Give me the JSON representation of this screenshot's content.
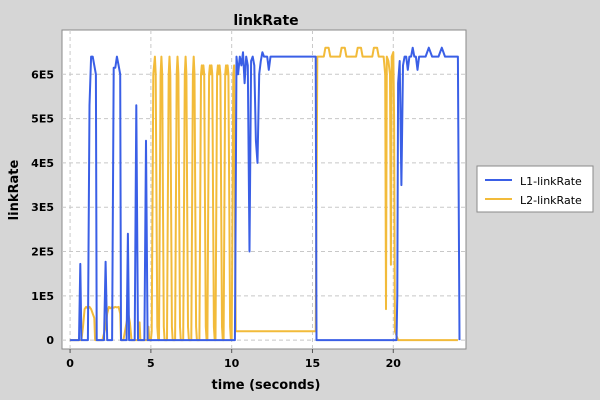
{
  "chart_data": {
    "type": "line",
    "title": "linkRate",
    "xlabel": "time (seconds)",
    "ylabel": "linkRate",
    "xlim": [
      -0.5,
      24.5
    ],
    "ylim": [
      -20000,
      700000
    ],
    "x_ticks": [
      0,
      5,
      10,
      15,
      20
    ],
    "x_tick_labels": [
      "0",
      "5",
      "10",
      "15",
      "20"
    ],
    "y_ticks": [
      0,
      100000,
      200000,
      300000,
      400000,
      500000,
      600000
    ],
    "y_tick_labels": [
      "0",
      "1E5",
      "2E5",
      "3E5",
      "4E5",
      "5E5",
      "6E5"
    ],
    "grid": true,
    "legend_position": "right",
    "series": [
      {
        "name": "L1-linkRate",
        "color": "#3a5fe6",
        "points": [
          [
            0,
            0
          ],
          [
            0.55,
            0
          ],
          [
            0.63,
            172000
          ],
          [
            0.7,
            0
          ],
          [
            1.1,
            0
          ],
          [
            1.2,
            530000
          ],
          [
            1.3,
            640000
          ],
          [
            1.4,
            640000
          ],
          [
            1.5,
            620000
          ],
          [
            1.6,
            600000
          ],
          [
            1.65,
            0
          ],
          [
            2.1,
            0
          ],
          [
            2.2,
            177000
          ],
          [
            2.3,
            0
          ],
          [
            2.6,
            0
          ],
          [
            2.7,
            615000
          ],
          [
            2.8,
            615000
          ],
          [
            2.9,
            640000
          ],
          [
            3.0,
            620000
          ],
          [
            3.1,
            600000
          ],
          [
            3.15,
            0
          ],
          [
            3.5,
            0
          ],
          [
            3.58,
            240000
          ],
          [
            3.65,
            0
          ],
          [
            4.0,
            0
          ],
          [
            4.1,
            530000
          ],
          [
            4.2,
            0
          ],
          [
            4.6,
            0
          ],
          [
            4.7,
            450000
          ],
          [
            4.8,
            0
          ],
          [
            5.4,
            0
          ],
          [
            5.45,
            0
          ],
          [
            10.2,
            0
          ],
          [
            10.25,
            300000
          ],
          [
            10.3,
            640000
          ],
          [
            10.4,
            600000
          ],
          [
            10.5,
            640000
          ],
          [
            10.6,
            620000
          ],
          [
            10.7,
            650000
          ],
          [
            10.8,
            580000
          ],
          [
            10.9,
            640000
          ],
          [
            11.0,
            620000
          ],
          [
            11.1,
            200000
          ],
          [
            11.2,
            630000
          ],
          [
            11.3,
            640000
          ],
          [
            11.4,
            620000
          ],
          [
            11.5,
            450000
          ],
          [
            11.6,
            400000
          ],
          [
            11.7,
            600000
          ],
          [
            11.8,
            630000
          ],
          [
            11.9,
            650000
          ],
          [
            12.0,
            640000
          ],
          [
            12.2,
            640000
          ],
          [
            12.3,
            610000
          ],
          [
            12.4,
            640000
          ],
          [
            12.6,
            640000
          ],
          [
            12.8,
            640000
          ],
          [
            13.0,
            640000
          ],
          [
            13.2,
            640000
          ],
          [
            13.4,
            640000
          ],
          [
            13.6,
            640000
          ],
          [
            13.8,
            640000
          ],
          [
            14.0,
            640000
          ],
          [
            14.2,
            640000
          ],
          [
            14.4,
            640000
          ],
          [
            14.6,
            640000
          ],
          [
            14.8,
            640000
          ],
          [
            15.0,
            640000
          ],
          [
            15.1,
            640000
          ],
          [
            15.2,
            640000
          ],
          [
            15.25,
            0
          ],
          [
            16,
            0
          ],
          [
            17,
            0
          ],
          [
            18,
            0
          ],
          [
            19,
            0
          ],
          [
            20,
            0
          ],
          [
            20.1,
            0
          ],
          [
            20.2,
            0
          ],
          [
            20.25,
            100000
          ],
          [
            20.3,
            580000
          ],
          [
            20.4,
            630000
          ],
          [
            20.5,
            350000
          ],
          [
            20.6,
            620000
          ],
          [
            20.7,
            640000
          ],
          [
            20.8,
            640000
          ],
          [
            20.9,
            610000
          ],
          [
            21.0,
            640000
          ],
          [
            21.1,
            640000
          ],
          [
            21.2,
            660000
          ],
          [
            21.3,
            640000
          ],
          [
            21.4,
            640000
          ],
          [
            21.5,
            610000
          ],
          [
            21.6,
            640000
          ],
          [
            21.8,
            640000
          ],
          [
            22.0,
            640000
          ],
          [
            22.2,
            660000
          ],
          [
            22.4,
            640000
          ],
          [
            22.6,
            640000
          ],
          [
            22.8,
            640000
          ],
          [
            23.0,
            660000
          ],
          [
            23.2,
            640000
          ],
          [
            23.4,
            640000
          ],
          [
            23.6,
            640000
          ],
          [
            23.8,
            640000
          ],
          [
            24.0,
            640000
          ],
          [
            24.1,
            0
          ]
        ]
      },
      {
        "name": "L2-linkRate",
        "color": "#f2bb3a",
        "points": [
          [
            0,
            0
          ],
          [
            0.7,
            0
          ],
          [
            0.8,
            30000
          ],
          [
            0.9,
            70000
          ],
          [
            1.0,
            75000
          ],
          [
            1.1,
            72000
          ],
          [
            1.2,
            75000
          ],
          [
            1.3,
            70000
          ],
          [
            1.4,
            60000
          ],
          [
            1.5,
            50000
          ],
          [
            1.55,
            0
          ],
          [
            2.0,
            0
          ],
          [
            2.2,
            30000
          ],
          [
            2.3,
            60000
          ],
          [
            2.4,
            75000
          ],
          [
            2.5,
            72000
          ],
          [
            2.6,
            75000
          ],
          [
            2.7,
            73000
          ],
          [
            2.8,
            75000
          ],
          [
            2.9,
            74000
          ],
          [
            3.0,
            75000
          ],
          [
            3.1,
            60000
          ],
          [
            3.15,
            0
          ],
          [
            3.3,
            0
          ],
          [
            3.5,
            40000
          ],
          [
            3.6,
            60000
          ],
          [
            3.7,
            40000
          ],
          [
            3.8,
            0
          ],
          [
            4.2,
            0
          ],
          [
            4.3,
            40000
          ],
          [
            4.35,
            0
          ],
          [
            4.8,
            0
          ],
          [
            4.85,
            30000
          ],
          [
            4.9,
            0
          ],
          [
            5.0,
            0
          ],
          [
            5.05,
            20000
          ],
          [
            5.1,
            300000
          ],
          [
            5.15,
            600000
          ],
          [
            5.2,
            620000
          ],
          [
            5.25,
            640000
          ],
          [
            5.3,
            600000
          ],
          [
            5.35,
            300000
          ],
          [
            5.4,
            30000
          ],
          [
            5.45,
            0
          ],
          [
            5.5,
            0
          ],
          [
            5.55,
            300000
          ],
          [
            5.6,
            600000
          ],
          [
            5.65,
            640000
          ],
          [
            5.7,
            600000
          ],
          [
            5.75,
            300000
          ],
          [
            5.8,
            30000
          ],
          [
            5.85,
            0
          ],
          [
            6.0,
            0
          ],
          [
            6.05,
            300000
          ],
          [
            6.1,
            600000
          ],
          [
            6.15,
            640000
          ],
          [
            6.2,
            600000
          ],
          [
            6.25,
            300000
          ],
          [
            6.3,
            30000
          ],
          [
            6.35,
            0
          ],
          [
            6.5,
            0
          ],
          [
            6.55,
            300000
          ],
          [
            6.6,
            600000
          ],
          [
            6.65,
            640000
          ],
          [
            6.7,
            600000
          ],
          [
            6.75,
            300000
          ],
          [
            6.8,
            30000
          ],
          [
            6.85,
            0
          ],
          [
            7.0,
            0
          ],
          [
            7.05,
            300000
          ],
          [
            7.1,
            600000
          ],
          [
            7.15,
            640000
          ],
          [
            7.2,
            600000
          ],
          [
            7.25,
            300000
          ],
          [
            7.3,
            30000
          ],
          [
            7.35,
            0
          ],
          [
            7.5,
            0
          ],
          [
            7.55,
            300000
          ],
          [
            7.6,
            600000
          ],
          [
            7.65,
            640000
          ],
          [
            7.7,
            600000
          ],
          [
            7.75,
            300000
          ],
          [
            7.8,
            30000
          ],
          [
            7.85,
            0
          ],
          [
            8.0,
            0
          ],
          [
            8.05,
            300000
          ],
          [
            8.1,
            600000
          ],
          [
            8.15,
            620000
          ],
          [
            8.2,
            600000
          ],
          [
            8.25,
            620000
          ],
          [
            8.3,
            600000
          ],
          [
            8.35,
            300000
          ],
          [
            8.4,
            30000
          ],
          [
            8.45,
            0
          ],
          [
            8.5,
            0
          ],
          [
            8.55,
            300000
          ],
          [
            8.6,
            600000
          ],
          [
            8.65,
            620000
          ],
          [
            8.7,
            600000
          ],
          [
            8.75,
            620000
          ],
          [
            8.8,
            600000
          ],
          [
            8.85,
            300000
          ],
          [
            8.9,
            30000
          ],
          [
            8.95,
            0
          ],
          [
            9.0,
            0
          ],
          [
            9.05,
            300000
          ],
          [
            9.1,
            600000
          ],
          [
            9.15,
            620000
          ],
          [
            9.2,
            600000
          ],
          [
            9.25,
            620000
          ],
          [
            9.3,
            600000
          ],
          [
            9.35,
            300000
          ],
          [
            9.4,
            30000
          ],
          [
            9.45,
            0
          ],
          [
            9.5,
            0
          ],
          [
            9.55,
            300000
          ],
          [
            9.6,
            600000
          ],
          [
            9.65,
            620000
          ],
          [
            9.7,
            600000
          ],
          [
            9.75,
            620000
          ],
          [
            9.8,
            600000
          ],
          [
            9.85,
            300000
          ],
          [
            9.9,
            30000
          ],
          [
            9.95,
            0
          ],
          [
            10.0,
            0
          ],
          [
            10.05,
            300000
          ],
          [
            10.1,
            600000
          ],
          [
            10.15,
            620000
          ],
          [
            10.2,
            300000
          ],
          [
            10.25,
            20000
          ],
          [
            10.3,
            20000
          ],
          [
            11.0,
            20000
          ],
          [
            12.0,
            20000
          ],
          [
            13.0,
            20000
          ],
          [
            14.0,
            20000
          ],
          [
            15.0,
            20000
          ],
          [
            15.2,
            20000
          ],
          [
            15.25,
            300000
          ],
          [
            15.3,
            640000
          ],
          [
            15.5,
            640000
          ],
          [
            15.7,
            640000
          ],
          [
            15.8,
            660000
          ],
          [
            16.0,
            660000
          ],
          [
            16.1,
            640000
          ],
          [
            16.3,
            640000
          ],
          [
            16.5,
            640000
          ],
          [
            16.7,
            640000
          ],
          [
            16.8,
            660000
          ],
          [
            17.0,
            660000
          ],
          [
            17.1,
            640000
          ],
          [
            17.3,
            640000
          ],
          [
            17.5,
            640000
          ],
          [
            17.7,
            640000
          ],
          [
            17.8,
            660000
          ],
          [
            18.0,
            660000
          ],
          [
            18.1,
            640000
          ],
          [
            18.3,
            640000
          ],
          [
            18.5,
            640000
          ],
          [
            18.7,
            640000
          ],
          [
            18.8,
            660000
          ],
          [
            19.0,
            660000
          ],
          [
            19.1,
            640000
          ],
          [
            19.3,
            640000
          ],
          [
            19.4,
            640000
          ],
          [
            19.5,
            600000
          ],
          [
            19.55,
            70000
          ],
          [
            19.6,
            640000
          ],
          [
            19.7,
            630000
          ],
          [
            19.8,
            600000
          ],
          [
            19.85,
            170000
          ],
          [
            19.9,
            640000
          ],
          [
            20.0,
            650000
          ],
          [
            20.05,
            500000
          ],
          [
            20.1,
            20000
          ],
          [
            20.3,
            0
          ],
          [
            21.0,
            0
          ],
          [
            22.0,
            0
          ],
          [
            23.0,
            0
          ],
          [
            24.0,
            0
          ]
        ]
      }
    ]
  }
}
